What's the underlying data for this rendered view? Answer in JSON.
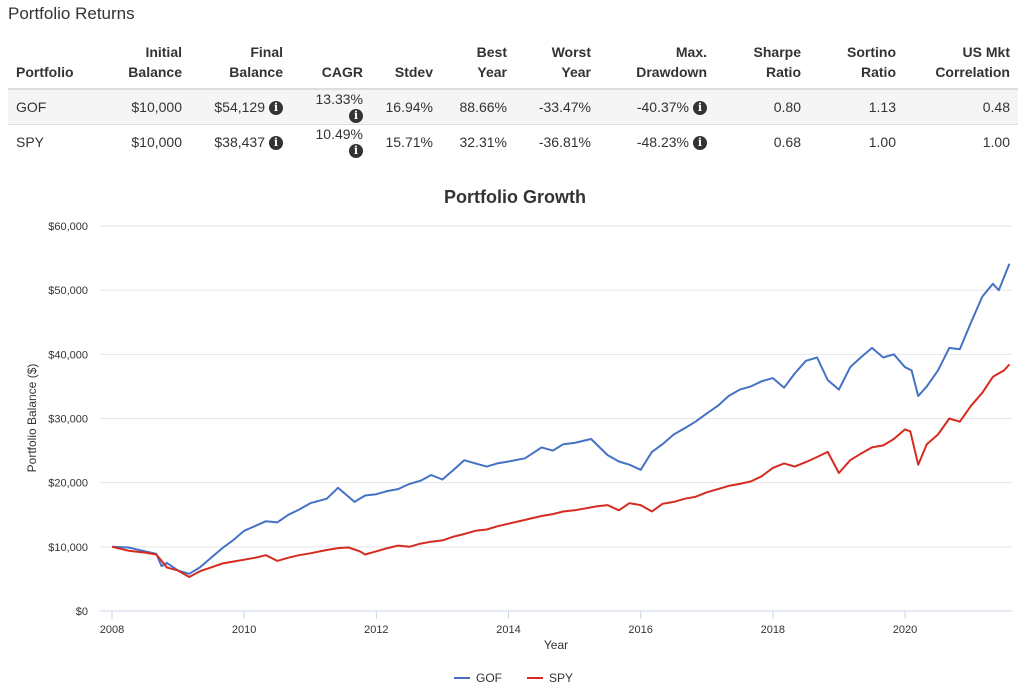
{
  "returns": {
    "title": "Portfolio Returns",
    "headers": {
      "portfolio": "Portfolio",
      "initial_l1": "Initial",
      "initial_l2": "Balance",
      "final_l1": "Final",
      "final_l2": "Balance",
      "cagr": "CAGR",
      "stdev": "Stdev",
      "best_l1": "Best",
      "best_l2": "Year",
      "worst_l1": "Worst",
      "worst_l2": "Year",
      "mdd_l1": "Max.",
      "mdd_l2": "Drawdown",
      "sharpe_l1": "Sharpe",
      "sharpe_l2": "Ratio",
      "sortino_l1": "Sortino",
      "sortino_l2": "Ratio",
      "corr_l1": "US Mkt",
      "corr_l2": "Correlation"
    },
    "info_glyph": "i",
    "rows": [
      {
        "portfolio": "GOF",
        "initial": "$10,000",
        "final": "$54,129",
        "cagr": "13.33%",
        "stdev": "16.94%",
        "best": "88.66%",
        "worst": "-33.47%",
        "mdd": "-40.37%",
        "sharpe": "0.80",
        "sortino": "1.13",
        "corr": "0.48"
      },
      {
        "portfolio": "SPY",
        "initial": "$10,000",
        "final": "$38,437",
        "cagr": "10.49%",
        "stdev": "15.71%",
        "best": "32.31%",
        "worst": "-36.81%",
        "mdd": "-48.23%",
        "sharpe": "0.68",
        "sortino": "1.00",
        "corr": "1.00"
      }
    ]
  },
  "chart_data": {
    "type": "line",
    "title": "Portfolio Growth",
    "xlabel": "Year",
    "ylabel": "Portfolio Balance ($)",
    "xlim": [
      2008.0,
      2021.6
    ],
    "ylim": [
      0,
      60000
    ],
    "x_ticks": [
      2008,
      2010,
      2012,
      2014,
      2016,
      2018,
      2020
    ],
    "y_ticks": [
      0,
      10000,
      20000,
      30000,
      40000,
      50000,
      60000
    ],
    "y_tick_labels": [
      "$0",
      "$10,000",
      "$20,000",
      "$30,000",
      "$40,000",
      "$50,000",
      "$60,000"
    ],
    "grid": "horizontal",
    "legend": "bottom-center",
    "series": [
      {
        "name": "GOF",
        "color": "#4472c4",
        "points": [
          [
            2008.0,
            10000
          ],
          [
            2008.25,
            9900
          ],
          [
            2008.5,
            9300
          ],
          [
            2008.67,
            8900
          ],
          [
            2008.75,
            7000
          ],
          [
            2008.83,
            7500
          ],
          [
            2009.0,
            6300
          ],
          [
            2009.17,
            5800
          ],
          [
            2009.33,
            6800
          ],
          [
            2009.5,
            8300
          ],
          [
            2009.67,
            9800
          ],
          [
            2009.83,
            11000
          ],
          [
            2010.0,
            12500
          ],
          [
            2010.33,
            14000
          ],
          [
            2010.5,
            13800
          ],
          [
            2010.67,
            15000
          ],
          [
            2010.83,
            15800
          ],
          [
            2011.0,
            16800
          ],
          [
            2011.25,
            17500
          ],
          [
            2011.42,
            19200
          ],
          [
            2011.67,
            17000
          ],
          [
            2011.83,
            18000
          ],
          [
            2012.0,
            18200
          ],
          [
            2012.17,
            18700
          ],
          [
            2012.33,
            19000
          ],
          [
            2012.5,
            19800
          ],
          [
            2012.67,
            20300
          ],
          [
            2012.83,
            21200
          ],
          [
            2013.0,
            20500
          ],
          [
            2013.17,
            22000
          ],
          [
            2013.33,
            23500
          ],
          [
            2013.5,
            23000
          ],
          [
            2013.67,
            22500
          ],
          [
            2013.83,
            23000
          ],
          [
            2014.0,
            23300
          ],
          [
            2014.25,
            23800
          ],
          [
            2014.5,
            25500
          ],
          [
            2014.67,
            25000
          ],
          [
            2014.83,
            26000
          ],
          [
            2015.0,
            26200
          ],
          [
            2015.25,
            26800
          ],
          [
            2015.5,
            24300
          ],
          [
            2015.67,
            23300
          ],
          [
            2015.83,
            22800
          ],
          [
            2016.0,
            22000
          ],
          [
            2016.17,
            24800
          ],
          [
            2016.33,
            26000
          ],
          [
            2016.5,
            27500
          ],
          [
            2016.67,
            28500
          ],
          [
            2016.83,
            29500
          ],
          [
            2017.0,
            30800
          ],
          [
            2017.17,
            32000
          ],
          [
            2017.33,
            33500
          ],
          [
            2017.5,
            34500
          ],
          [
            2017.67,
            35000
          ],
          [
            2017.83,
            35800
          ],
          [
            2018.0,
            36300
          ],
          [
            2018.17,
            34800
          ],
          [
            2018.33,
            37000
          ],
          [
            2018.5,
            39000
          ],
          [
            2018.67,
            39500
          ],
          [
            2018.83,
            36000
          ],
          [
            2019.0,
            34500
          ],
          [
            2019.17,
            38000
          ],
          [
            2019.33,
            39500
          ],
          [
            2019.5,
            41000
          ],
          [
            2019.67,
            39500
          ],
          [
            2019.83,
            40000
          ],
          [
            2020.0,
            38000
          ],
          [
            2020.1,
            37500
          ],
          [
            2020.2,
            33500
          ],
          [
            2020.33,
            35000
          ],
          [
            2020.5,
            37500
          ],
          [
            2020.67,
            41000
          ],
          [
            2020.83,
            40800
          ],
          [
            2021.0,
            45000
          ],
          [
            2021.17,
            49000
          ],
          [
            2021.33,
            51000
          ],
          [
            2021.42,
            50000
          ],
          [
            2021.58,
            54129
          ]
        ]
      },
      {
        "name": "SPY",
        "color": "#d62b20",
        "points": [
          [
            2008.0,
            10000
          ],
          [
            2008.25,
            9400
          ],
          [
            2008.5,
            9100
          ],
          [
            2008.67,
            8800
          ],
          [
            2008.75,
            7800
          ],
          [
            2008.83,
            6800
          ],
          [
            2009.0,
            6300
          ],
          [
            2009.17,
            5300
          ],
          [
            2009.33,
            6200
          ],
          [
            2009.5,
            6800
          ],
          [
            2009.67,
            7400
          ],
          [
            2009.83,
            7700
          ],
          [
            2010.0,
            8000
          ],
          [
            2010.17,
            8300
          ],
          [
            2010.33,
            8700
          ],
          [
            2010.5,
            7800
          ],
          [
            2010.67,
            8300
          ],
          [
            2010.83,
            8700
          ],
          [
            2011.0,
            9000
          ],
          [
            2011.25,
            9500
          ],
          [
            2011.42,
            9800
          ],
          [
            2011.58,
            9900
          ],
          [
            2011.75,
            9300
          ],
          [
            2011.83,
            8800
          ],
          [
            2012.0,
            9300
          ],
          [
            2012.17,
            9800
          ],
          [
            2012.33,
            10200
          ],
          [
            2012.5,
            10000
          ],
          [
            2012.67,
            10500
          ],
          [
            2012.83,
            10800
          ],
          [
            2013.0,
            11000
          ],
          [
            2013.17,
            11600
          ],
          [
            2013.33,
            12000
          ],
          [
            2013.5,
            12500
          ],
          [
            2013.67,
            12700
          ],
          [
            2013.83,
            13200
          ],
          [
            2014.0,
            13600
          ],
          [
            2014.25,
            14200
          ],
          [
            2014.5,
            14800
          ],
          [
            2014.67,
            15100
          ],
          [
            2014.83,
            15500
          ],
          [
            2015.0,
            15700
          ],
          [
            2015.17,
            16000
          ],
          [
            2015.33,
            16300
          ],
          [
            2015.5,
            16500
          ],
          [
            2015.67,
            15700
          ],
          [
            2015.83,
            16800
          ],
          [
            2016.0,
            16500
          ],
          [
            2016.17,
            15500
          ],
          [
            2016.33,
            16700
          ],
          [
            2016.5,
            17000
          ],
          [
            2016.67,
            17500
          ],
          [
            2016.83,
            17800
          ],
          [
            2017.0,
            18500
          ],
          [
            2017.17,
            19000
          ],
          [
            2017.33,
            19500
          ],
          [
            2017.5,
            19800
          ],
          [
            2017.67,
            20200
          ],
          [
            2017.83,
            21000
          ],
          [
            2018.0,
            22300
          ],
          [
            2018.17,
            23000
          ],
          [
            2018.33,
            22500
          ],
          [
            2018.5,
            23200
          ],
          [
            2018.67,
            24000
          ],
          [
            2018.83,
            24800
          ],
          [
            2019.0,
            21500
          ],
          [
            2019.17,
            23500
          ],
          [
            2019.33,
            24500
          ],
          [
            2019.5,
            25500
          ],
          [
            2019.67,
            25800
          ],
          [
            2019.83,
            26800
          ],
          [
            2020.0,
            28300
          ],
          [
            2020.08,
            28000
          ],
          [
            2020.2,
            22800
          ],
          [
            2020.33,
            26000
          ],
          [
            2020.5,
            27500
          ],
          [
            2020.67,
            30000
          ],
          [
            2020.83,
            29500
          ],
          [
            2021.0,
            32000
          ],
          [
            2021.17,
            34000
          ],
          [
            2021.33,
            36500
          ],
          [
            2021.5,
            37500
          ],
          [
            2021.58,
            38437
          ]
        ]
      }
    ]
  }
}
